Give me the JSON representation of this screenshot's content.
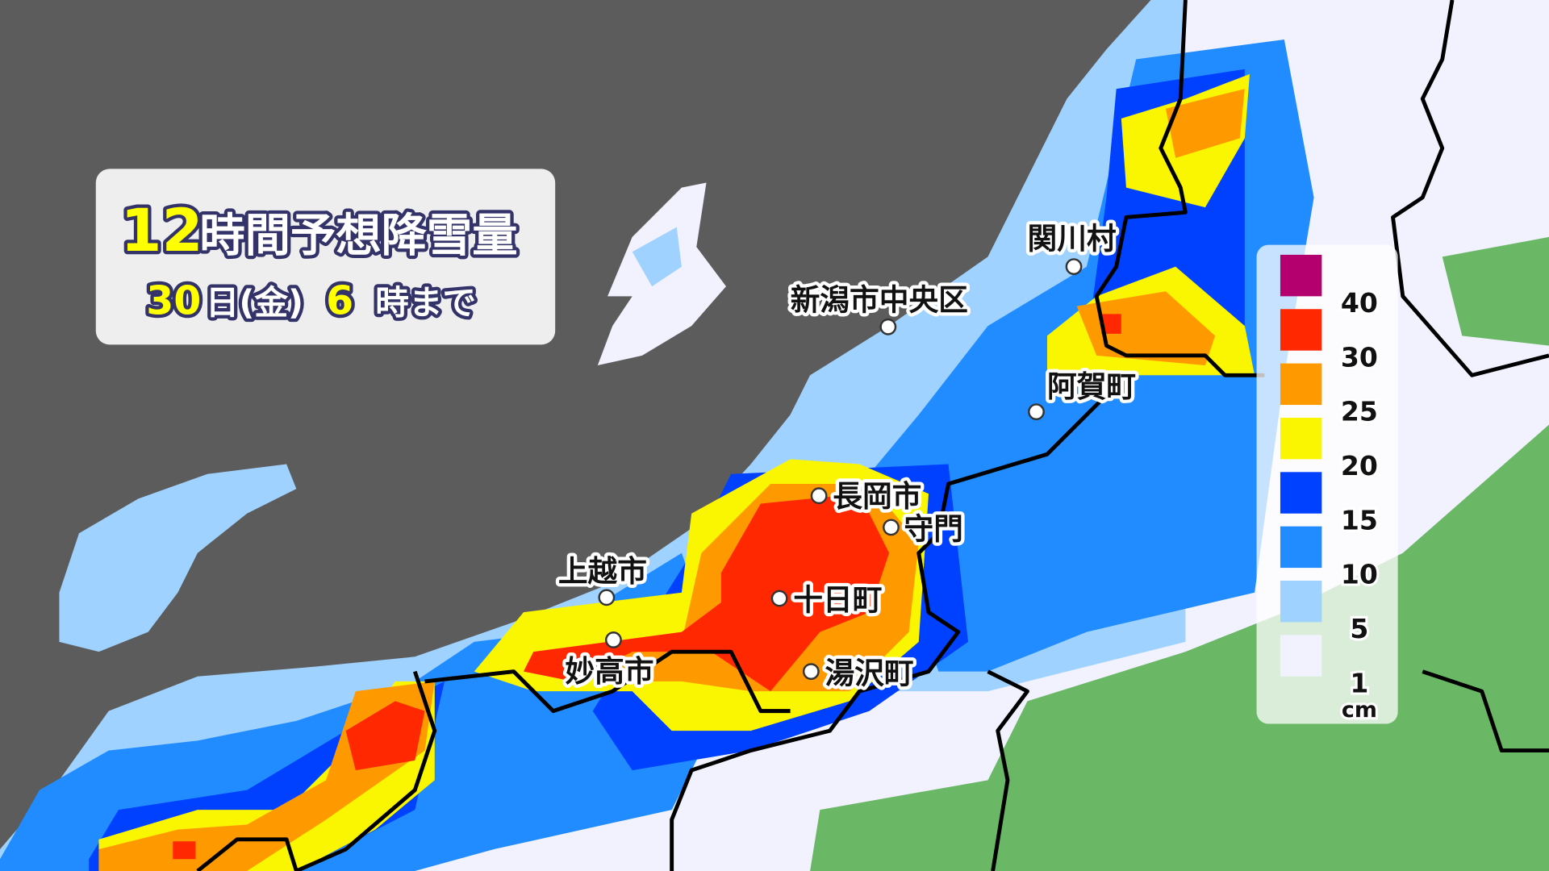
{
  "title": {
    "hours": "12",
    "main": "時間予想降雪量",
    "date_prefix": "30",
    "date_mid": "日(金)",
    "hour": "6",
    "date_suffix": "時まで"
  },
  "legend": {
    "unit": "cm",
    "levels": [
      {
        "label": "40",
        "color": "#b4006e"
      },
      {
        "label": "30",
        "color": "#ff2800"
      },
      {
        "label": "25",
        "color": "#ff9900"
      },
      {
        "label": "20",
        "color": "#faf500"
      },
      {
        "label": "15",
        "color": "#0041ff"
      },
      {
        "label": "10",
        "color": "#218cff"
      },
      {
        "label": "5",
        "color": "#a0d2ff"
      },
      {
        "label": "1",
        "color": "#f2f2ff"
      }
    ]
  },
  "colors": {
    "sea": "#5c5c5c",
    "no_snow_land": "#6ab866",
    "border": "#000000"
  },
  "cities": [
    {
      "name": "関川村"
    },
    {
      "name": "新潟市中央区"
    },
    {
      "name": "阿賀町"
    },
    {
      "name": "長岡市"
    },
    {
      "name": "守門"
    },
    {
      "name": "上越市"
    },
    {
      "name": "十日町"
    },
    {
      "name": "妙高市"
    },
    {
      "name": "湯沢町"
    }
  ]
}
